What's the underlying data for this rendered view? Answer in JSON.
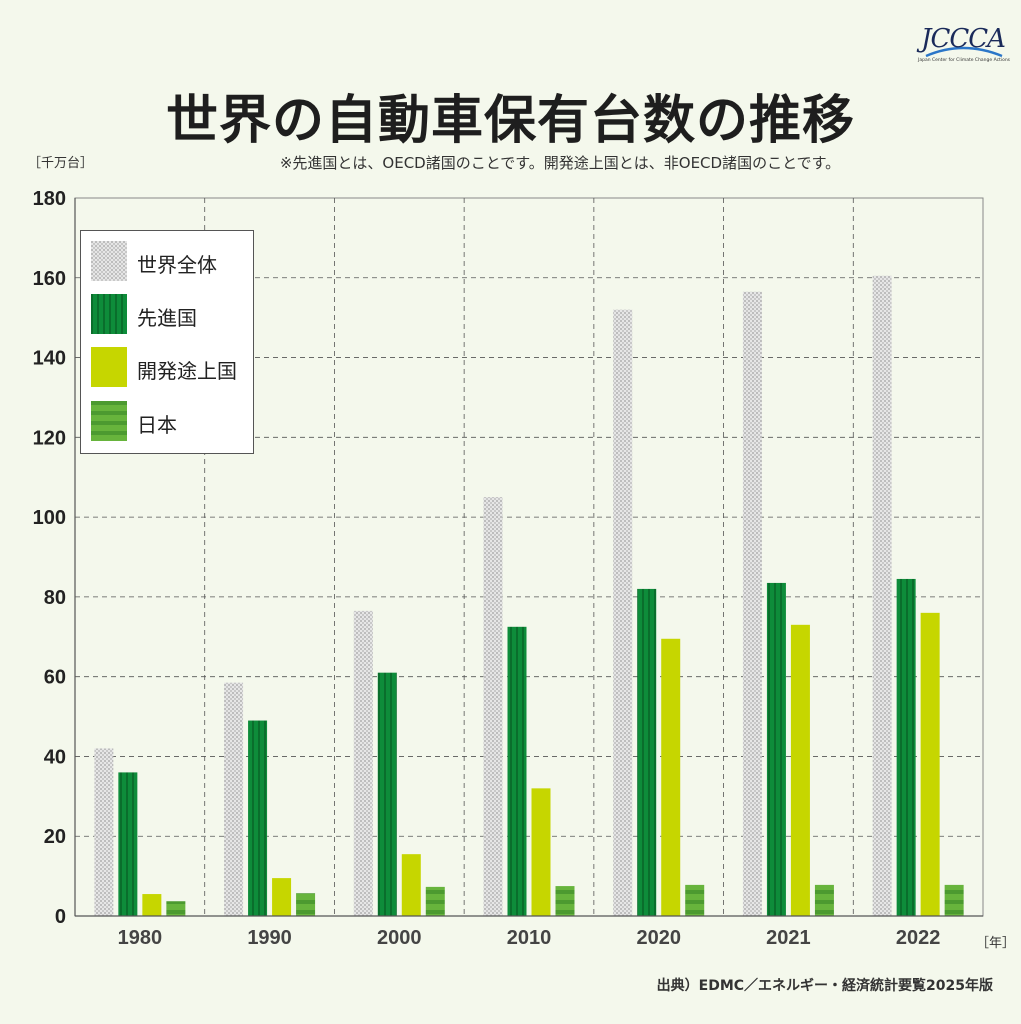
{
  "title": "世界の自動車保有台数の推移",
  "note": "※先進国とは、OECD諸国のことです。開発途上国とは、非OECD諸国のことです。",
  "y_unit": "［千万台］",
  "x_unit": "［年］",
  "source": "出典）EDMC／エネルギー・経済統計要覧2025年版",
  "logo": {
    "text": "JCCCA",
    "subtitle": "Japan Center for Climate Change Actions"
  },
  "colors": {
    "world": "#d3d3d3",
    "developed": "#0e8c3a",
    "developing": "#c6d600",
    "japan": "#5aaa3a",
    "background": "#f4f8ec"
  },
  "chart_data": {
    "type": "bar",
    "categories": [
      "1980",
      "1990",
      "2000",
      "2010",
      "2020",
      "2021",
      "2022"
    ],
    "series": [
      {
        "name": "世界全体",
        "values": [
          42,
          58.5,
          76.5,
          105,
          152,
          156.5,
          160.5
        ]
      },
      {
        "name": "先進国",
        "values": [
          36,
          49,
          61,
          72.5,
          82,
          83.5,
          84.5
        ]
      },
      {
        "name": "開発途上国",
        "values": [
          5.5,
          9.5,
          15.5,
          32,
          69.5,
          73,
          76
        ]
      },
      {
        "name": "日本",
        "values": [
          3.7,
          5.7,
          7.3,
          7.5,
          7.8,
          7.8,
          7.8
        ]
      }
    ],
    "ylim": [
      0,
      180
    ],
    "yticks": [
      "0",
      "20",
      "40",
      "60",
      "80",
      "100",
      "120",
      "140",
      "160",
      "180"
    ],
    "grid": true,
    "legend_position": "top-left"
  }
}
